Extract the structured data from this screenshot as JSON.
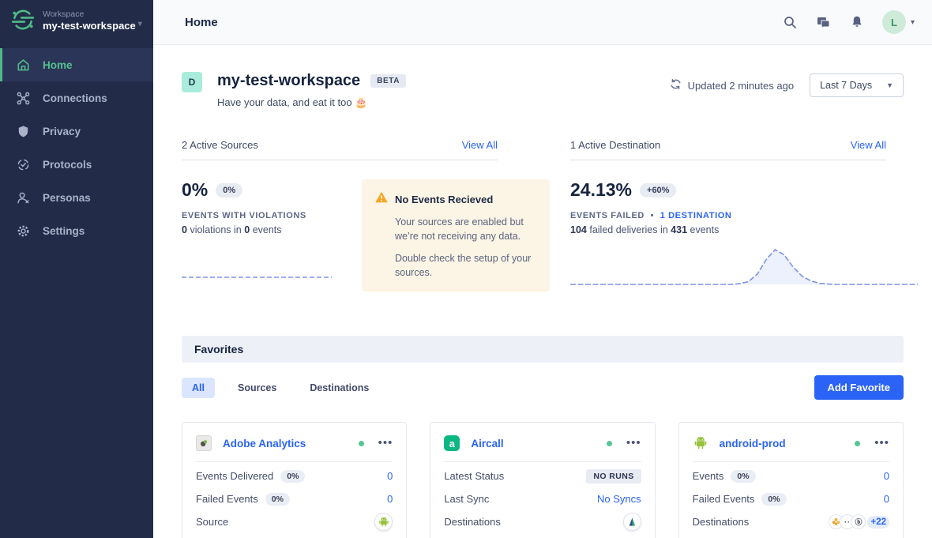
{
  "colors": {
    "accent_blue": "#2a63f5",
    "brand_green": "#4fb987",
    "warning_orange": "#f5a623",
    "sidebar_bg": "#222c48",
    "status_green": "#57c695"
  },
  "sidebar": {
    "workspace_label": "Workspace",
    "workspace_name": "my-test-workspace",
    "items": [
      {
        "label": "Home",
        "icon": "home-icon",
        "active": true
      },
      {
        "label": "Connections",
        "icon": "connections-icon",
        "active": false
      },
      {
        "label": "Privacy",
        "icon": "privacy-shield-icon",
        "active": false
      },
      {
        "label": "Protocols",
        "icon": "protocols-icon",
        "active": false
      },
      {
        "label": "Personas",
        "icon": "personas-icon",
        "active": false
      },
      {
        "label": "Settings",
        "icon": "settings-gear-icon",
        "active": false
      }
    ]
  },
  "topbar": {
    "title": "Home",
    "avatar_initial": "L"
  },
  "header": {
    "workspace_avatar_letter": "D",
    "title": "my-test-workspace",
    "beta_badge": "BETA",
    "subtitle": "Have your data, and eat it too 🎂",
    "updated_text": "Updated 2 minutes ago",
    "date_range": "Last 7 Days"
  },
  "overview": {
    "sources": {
      "header": "2 Active Sources",
      "view_all": "View All",
      "stat_value": "0%",
      "stat_delta": "0%",
      "stat_label": "EVENTS WITH VIOLATIONS",
      "detail_count1": "0",
      "detail_text1": "violations in",
      "detail_count2": "0",
      "detail_text2": "events",
      "warning": {
        "title": "No Events Recieved",
        "body1": "Your sources are enabled but we’re not receiving any data.",
        "body2": "Double check the setup of your sources."
      },
      "sparkline": {
        "type": "line",
        "values": [
          0,
          0,
          0,
          0,
          0,
          0,
          0,
          0,
          0,
          0
        ]
      }
    },
    "destination": {
      "header": "1 Active Destination",
      "view_all": "View All",
      "stat_value": "24.13%",
      "stat_delta": "+60%",
      "stat_label": "EVENTS FAILED",
      "separator": "•",
      "destination_link": "1 DESTINATION",
      "detail_count1": "104",
      "detail_text1": "failed deliveries in",
      "detail_count2": "431",
      "detail_text2": "events",
      "sparkline": {
        "type": "area",
        "values": [
          0,
          0,
          0,
          0,
          0,
          0,
          0,
          0,
          0,
          0,
          0,
          0,
          0,
          0,
          0,
          0,
          0,
          0,
          0,
          0.02,
          0.08,
          0.3,
          0.72,
          1,
          0.85,
          0.5,
          0.24,
          0.1,
          0.03,
          0.01,
          0,
          0,
          0,
          0,
          0,
          0,
          0,
          0,
          0,
          0
        ]
      }
    }
  },
  "favorites": {
    "title": "Favorites",
    "tabs": [
      {
        "label": "All",
        "active": true
      },
      {
        "label": "Sources",
        "active": false
      },
      {
        "label": "Destinations",
        "active": false
      }
    ],
    "add_button_label": "Add Favorite",
    "cards": [
      {
        "name": "Adobe Analytics",
        "icon": "adobe-analytics-logo",
        "status": "enabled",
        "rows": [
          {
            "label": "Events Delivered",
            "badge": "0%",
            "value": "0"
          },
          {
            "label": "Failed Events",
            "badge": "0%",
            "value": "0"
          },
          {
            "label": "Source",
            "icon": "android-logo"
          }
        ]
      },
      {
        "name": "Aircall",
        "icon": "aircall-logo",
        "status": "enabled",
        "rows": [
          {
            "label": "Latest Status",
            "pill": "NO RUNS"
          },
          {
            "label": "Last Sync",
            "value": "No Syncs"
          },
          {
            "label": "Destinations",
            "icon": "aircall-destination-logo"
          }
        ]
      },
      {
        "name": "android-prod",
        "icon": "android-logo",
        "status": "enabled",
        "rows": [
          {
            "label": "Events",
            "badge": "0%",
            "value": "0"
          },
          {
            "label": "Failed Events",
            "badge": "0%",
            "value": "0"
          },
          {
            "label": "Destinations",
            "icons": [
              "flower-logo",
              "dots-logo",
              "b-logo"
            ],
            "overflow": "+22"
          }
        ]
      }
    ]
  }
}
